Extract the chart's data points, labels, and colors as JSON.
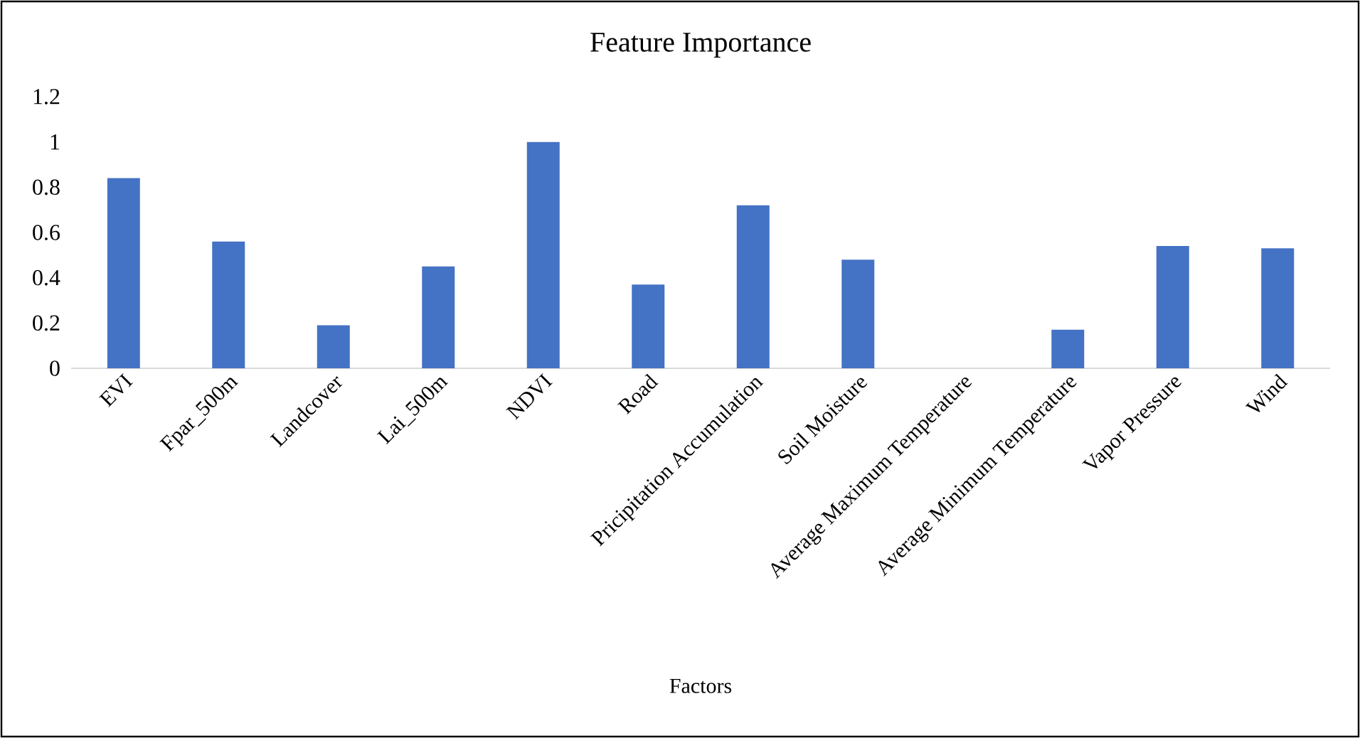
{
  "chart_data": {
    "type": "bar",
    "title": "Feature Importance",
    "xlabel": "Factors",
    "categories": [
      "EVI",
      "Fpar_500m",
      "Landcover",
      "Lai_500m",
      "NDVI",
      "Road",
      "Pricipitation Accumulation",
      "Soil Moisture",
      "Average Maximum Temperature",
      "Average Minimum Temperature",
      "Vapor Pressure",
      "Wind"
    ],
    "values": [
      0.84,
      0.56,
      0.19,
      0.45,
      1.0,
      0.37,
      0.72,
      0.48,
      0,
      0.17,
      0.54,
      0.53
    ],
    "color": "#4472c4",
    "ylim": [
      0,
      1.2
    ],
    "yticks": [
      0,
      0.2,
      0.4,
      0.6,
      0.8,
      1,
      1.2
    ]
  }
}
